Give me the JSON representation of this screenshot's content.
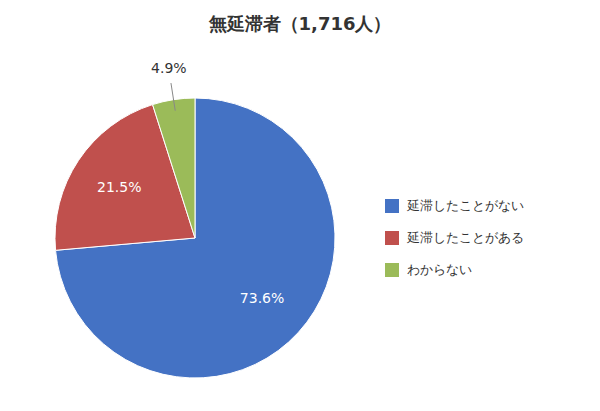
{
  "chart_data": {
    "type": "pie",
    "title": "無延滞者（1,716人）",
    "categories": [
      "延滞したことがない",
      "延滞したことがある",
      "わからない"
    ],
    "values": [
      73.6,
      21.5,
      4.9
    ],
    "value_labels": [
      "73.6%",
      "21.5%",
      "4.9%"
    ],
    "colors": [
      "#4472C4",
      "#C0504D",
      "#9BBB59"
    ],
    "data_labels": true,
    "legend": "right"
  }
}
